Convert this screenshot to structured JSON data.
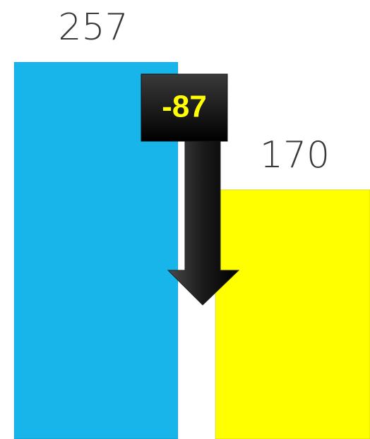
{
  "chart_data": {
    "type": "bar",
    "categories": [
      null,
      null
    ],
    "values": [
      257,
      170
    ],
    "colors": [
      "#17b5ea",
      "#ffff00"
    ],
    "annotation": "-87"
  }
}
